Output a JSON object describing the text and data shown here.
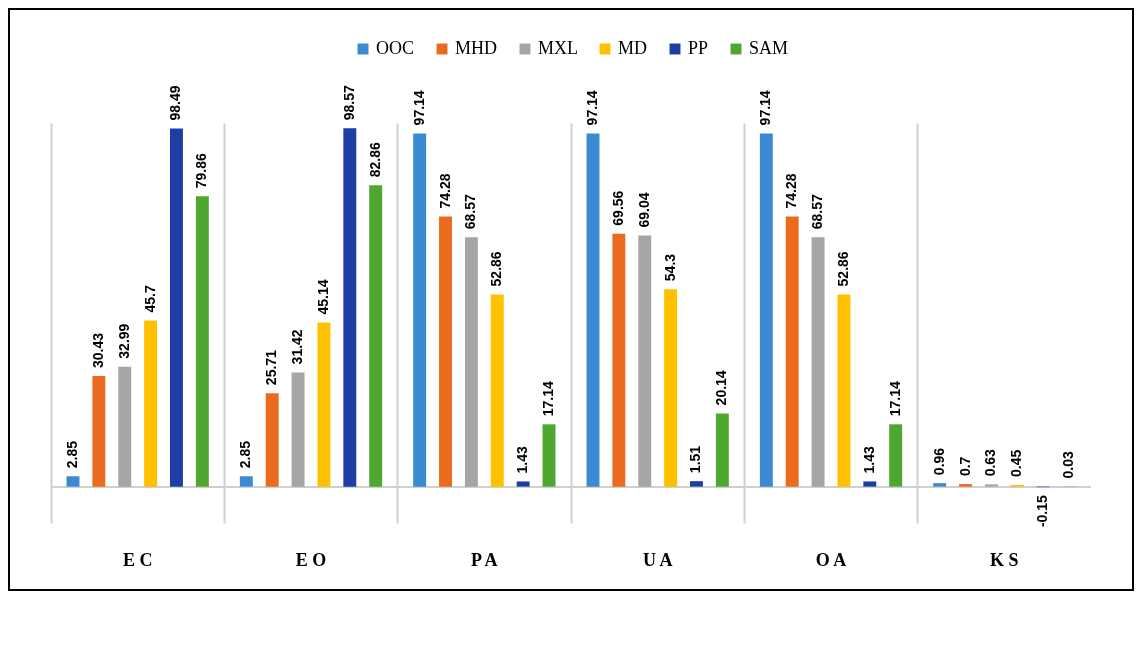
{
  "chart_data": {
    "type": "bar",
    "categories": [
      "E C",
      "E O",
      "P A",
      "U A",
      "O A",
      "K S"
    ],
    "series": [
      {
        "name": "OOC",
        "color": "#3a8ad4",
        "values": [
          2.85,
          2.85,
          97.14,
          97.14,
          97.14,
          0.96
        ]
      },
      {
        "name": "MHD",
        "color": "#ea6a1e",
        "values": [
          30.43,
          25.71,
          74.28,
          69.56,
          74.28,
          0.7
        ]
      },
      {
        "name": "MXL",
        "color": "#a5a5a5",
        "values": [
          32.99,
          31.42,
          68.57,
          69.04,
          68.57,
          0.63
        ]
      },
      {
        "name": "MD",
        "color": "#ffc000",
        "values": [
          45.7,
          45.14,
          52.86,
          54.3,
          52.86,
          0.45
        ]
      },
      {
        "name": "PP",
        "color": "#1e3ea6",
        "values": [
          98.49,
          98.57,
          1.43,
          1.51,
          1.43,
          -0.15
        ]
      },
      {
        "name": "SAM",
        "color": "#4ea72e",
        "values": [
          79.86,
          82.86,
          17.14,
          20.14,
          17.14,
          0.03
        ]
      }
    ],
    "data_labels": true,
    "grid": "x",
    "legend": "top"
  }
}
